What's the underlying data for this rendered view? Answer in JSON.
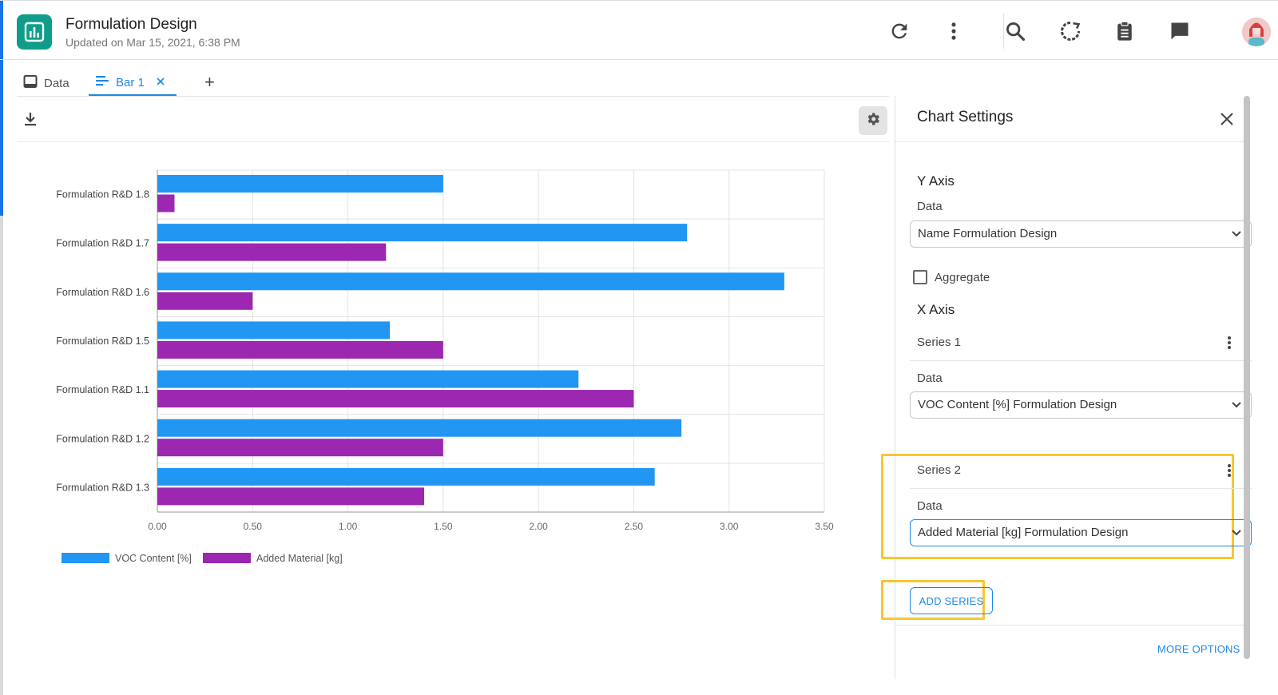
{
  "app": {
    "title": "Formulation Design",
    "updated": "Updated on Mar 15, 2021, 6:38 PM"
  },
  "header_icons": [
    "refresh-icon",
    "more-vert-icon",
    "search-icon",
    "spinner-icon",
    "clipboard-icon",
    "chat-icon",
    "avatar"
  ],
  "tabs": [
    {
      "label": "Data",
      "icon": "table-icon",
      "active": false
    },
    {
      "label": "Bar 1",
      "icon": "bar-chart-icon",
      "active": true
    }
  ],
  "add_tab": "+",
  "settings": {
    "title": "Chart Settings",
    "y_axis": {
      "title": "Y Axis",
      "data_label": "Data",
      "data_value": "Name Formulation Design"
    },
    "aggregate_label": "Aggregate",
    "x_axis": {
      "title": "X Axis",
      "series": [
        {
          "name": "Series 1",
          "data_label": "Data",
          "data_value": "VOC Content [%] Formulation Design"
        },
        {
          "name": "Series 2",
          "data_label": "Data",
          "data_value": "Added Material [kg] Formulation Design"
        }
      ]
    },
    "add_series": "ADD SERIES",
    "more_options": "MORE OPTIONS"
  },
  "colors": {
    "accent": "#1e88e5",
    "series1": "#2196f3",
    "series2": "#9c27b0",
    "highlight": "#f7c631",
    "logo": "#0f9d8a"
  },
  "chart_data": {
    "type": "bar",
    "orientation": "horizontal",
    "categories": [
      "Formulation R&D 1.8",
      "Formulation R&D 1.7",
      "Formulation R&D 1.6",
      "Formulation R&D 1.5",
      "Formulation R&D 1.1",
      "Formulation R&D 1.2",
      "Formulation R&D 1.3"
    ],
    "series": [
      {
        "name": "VOC Content [%]",
        "values": [
          1.5,
          2.78,
          3.29,
          1.22,
          2.21,
          2.75,
          2.61
        ]
      },
      {
        "name": "Added Material [kg]",
        "values": [
          0.09,
          1.2,
          0.5,
          1.5,
          2.5,
          1.5,
          1.4
        ]
      }
    ],
    "xlim": [
      0,
      3.5
    ],
    "x_ticks": [
      "0.00",
      "0.50",
      "1.00",
      "1.50",
      "2.00",
      "2.50",
      "3.00",
      "3.50"
    ],
    "grid": true,
    "legend": "bottom-left"
  }
}
